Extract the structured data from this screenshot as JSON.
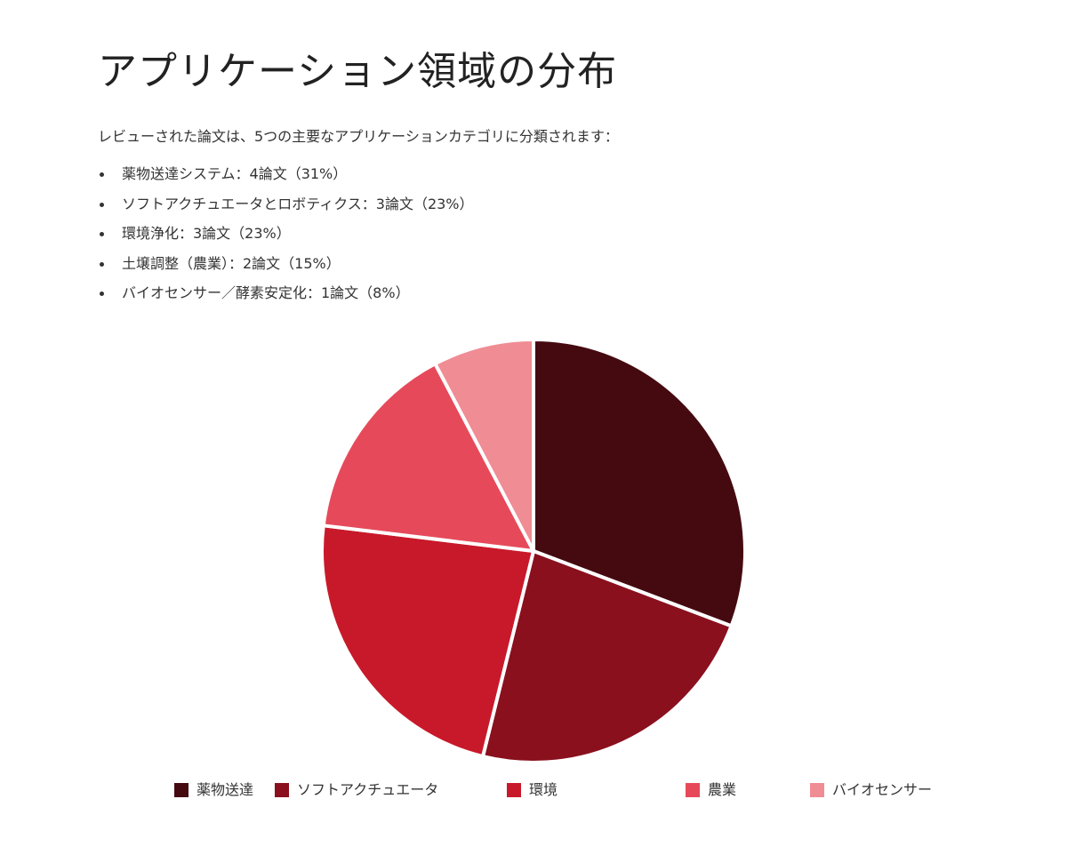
{
  "page": {
    "title": "アプリケーション領域の分布",
    "intro": "レビューされた論文は、5つの主要なアプリケーションカテゴリに分類されます：",
    "bullets": [
      "薬物送達システム：4論文（31%）",
      "ソフトアクチュエータとロボティクス：3論文（23%）",
      "環境浄化：3論文（23%）",
      "土壌調整（農業）：2論文（15%）",
      "バイオセンサー／酵素安定化：1論文（8%）"
    ]
  },
  "chart_data": {
    "type": "pie",
    "categories": [
      "薬物送達",
      "ソフトアクチュエータ",
      "環境",
      "農業",
      "バイオセンサー"
    ],
    "values": [
      4,
      3,
      3,
      2,
      1
    ],
    "colors": [
      "#450a10",
      "#8a101e",
      "#c8192a",
      "#e64a5a",
      "#f08c94"
    ],
    "start_angle_deg": 0,
    "direction": "clockwise",
    "legend_position": "bottom",
    "slice_border_color": "#ffffff"
  }
}
